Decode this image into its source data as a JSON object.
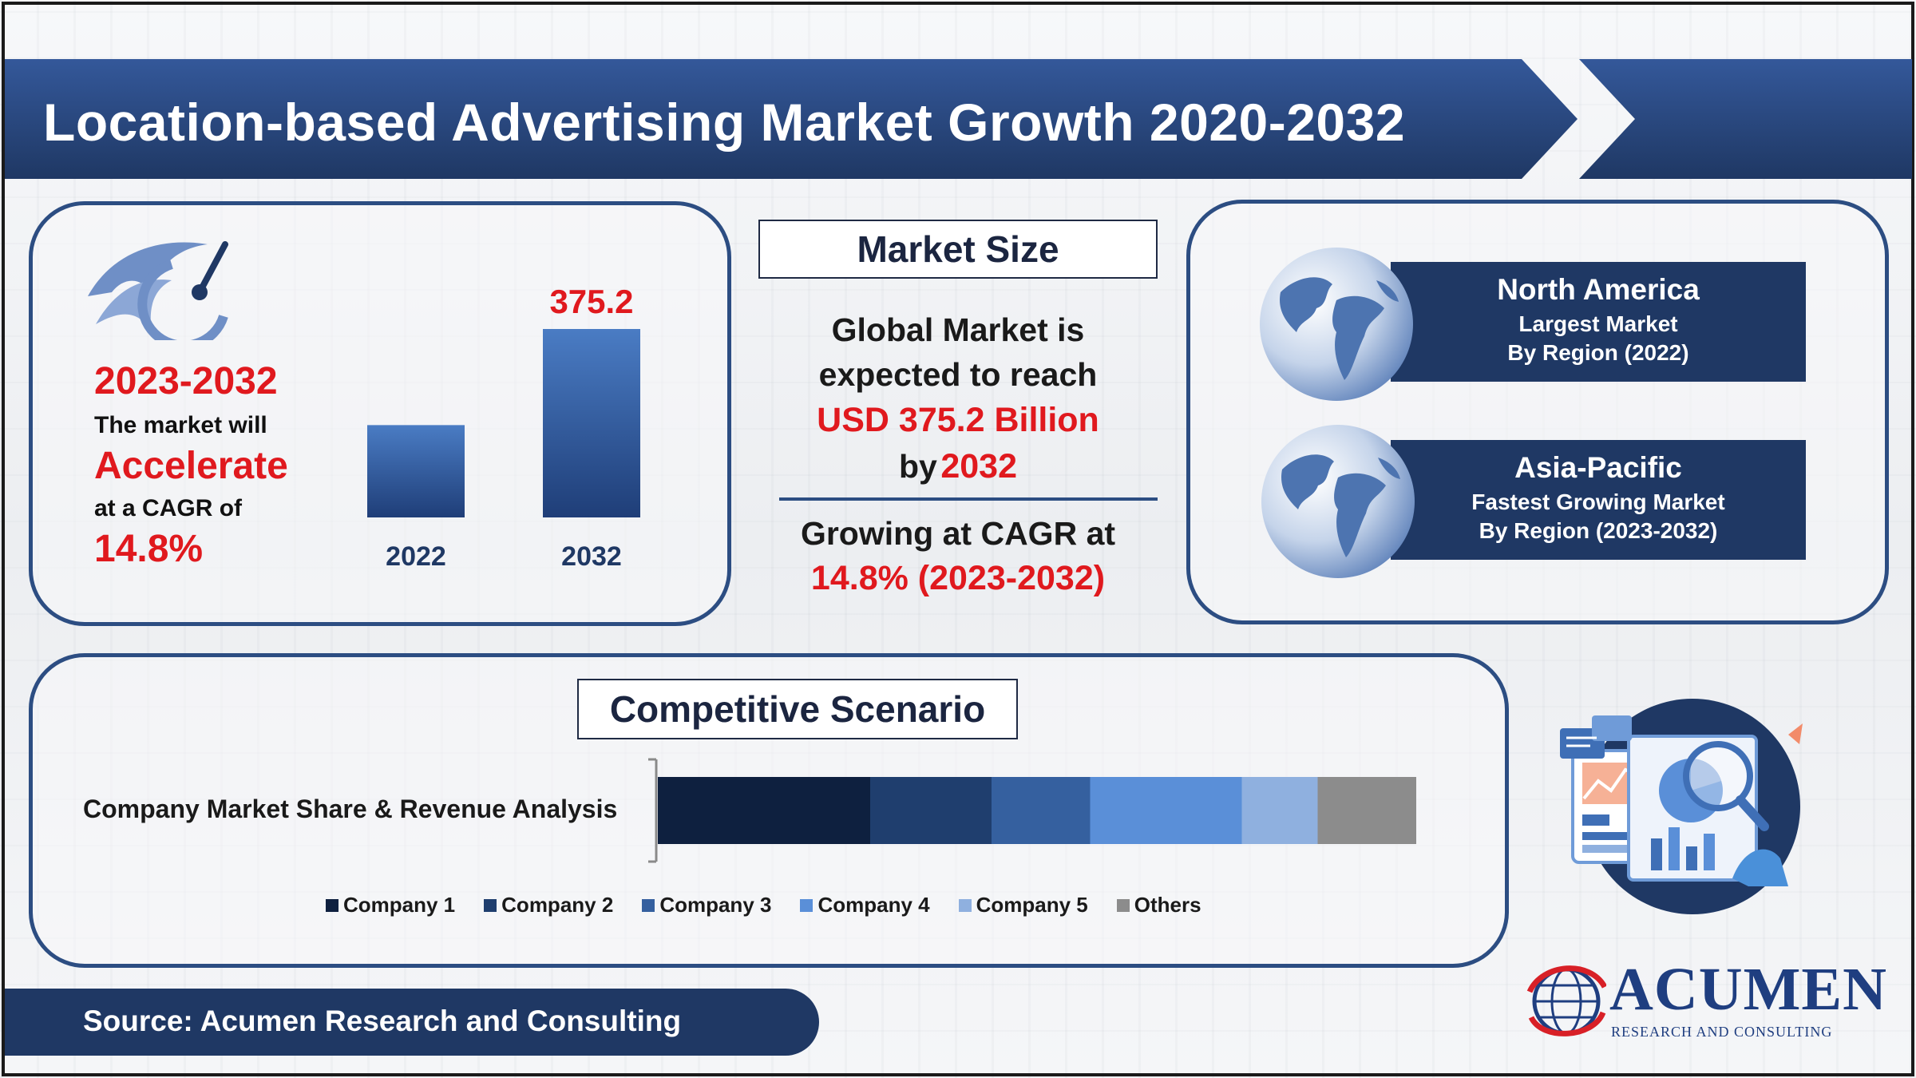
{
  "header": {
    "title": "Location-based Advertising Market Growth 2020-2032"
  },
  "growth": {
    "period": "2023-2032",
    "line1": "The market will",
    "emphasis": "Accelerate",
    "line2": "at a CAGR of",
    "cagr": "14.8%"
  },
  "market_size": {
    "heading": "Market Size",
    "line1": "Global Market is",
    "line2": "expected to reach",
    "value": "USD 375.2 Billion",
    "by_prefix": "by",
    "by_year": "2032",
    "growing": "Growing at CAGR at",
    "cagr": "14.8% (2023-2032)"
  },
  "regions": [
    {
      "title": "North America",
      "line1": "Largest Market",
      "line2": "By Region (2022)"
    },
    {
      "title": "Asia-Pacific",
      "line1": "Fastest Growing Market",
      "line2": "By Region (2023-2032)"
    }
  ],
  "competitive": {
    "heading": "Competitive Scenario",
    "row_label": "Company Market Share & Revenue Analysis"
  },
  "source": "Source: Acumen Research and Consulting",
  "logo": {
    "name": "ACUMEN",
    "tagline": "RESEARCH AND CONSULTING"
  },
  "colors": {
    "primary": "#1f3864",
    "accent_red": "#e0191e",
    "bar_top": "#4a7cc4",
    "bar_bottom": "#1f3e78"
  },
  "chart_data": [
    {
      "type": "bar",
      "categories": [
        "2022",
        "2032"
      ],
      "values": [
        null,
        375.2
      ],
      "data_labels": [
        "",
        "375.2"
      ],
      "bar_fraction": [
        0.49,
        1.0
      ],
      "ylim": [
        0,
        375.2
      ]
    },
    {
      "type": "bar",
      "orientation": "horizontal-stacked",
      "categories": [
        "Company Market Share & Revenue Analysis"
      ],
      "series": [
        {
          "name": "Company 1",
          "values": [
            28
          ],
          "color": "#0e203f"
        },
        {
          "name": "Company 2",
          "values": [
            16
          ],
          "color": "#1f3e6e"
        },
        {
          "name": "Company 3",
          "values": [
            13
          ],
          "color": "#35609f"
        },
        {
          "name": "Company 4",
          "values": [
            20
          ],
          "color": "#5a8fd8"
        },
        {
          "name": "Company 5",
          "values": [
            10
          ],
          "color": "#8fb0df"
        },
        {
          "name": "Others",
          "values": [
            13
          ],
          "color": "#8c8c8c"
        }
      ]
    }
  ]
}
